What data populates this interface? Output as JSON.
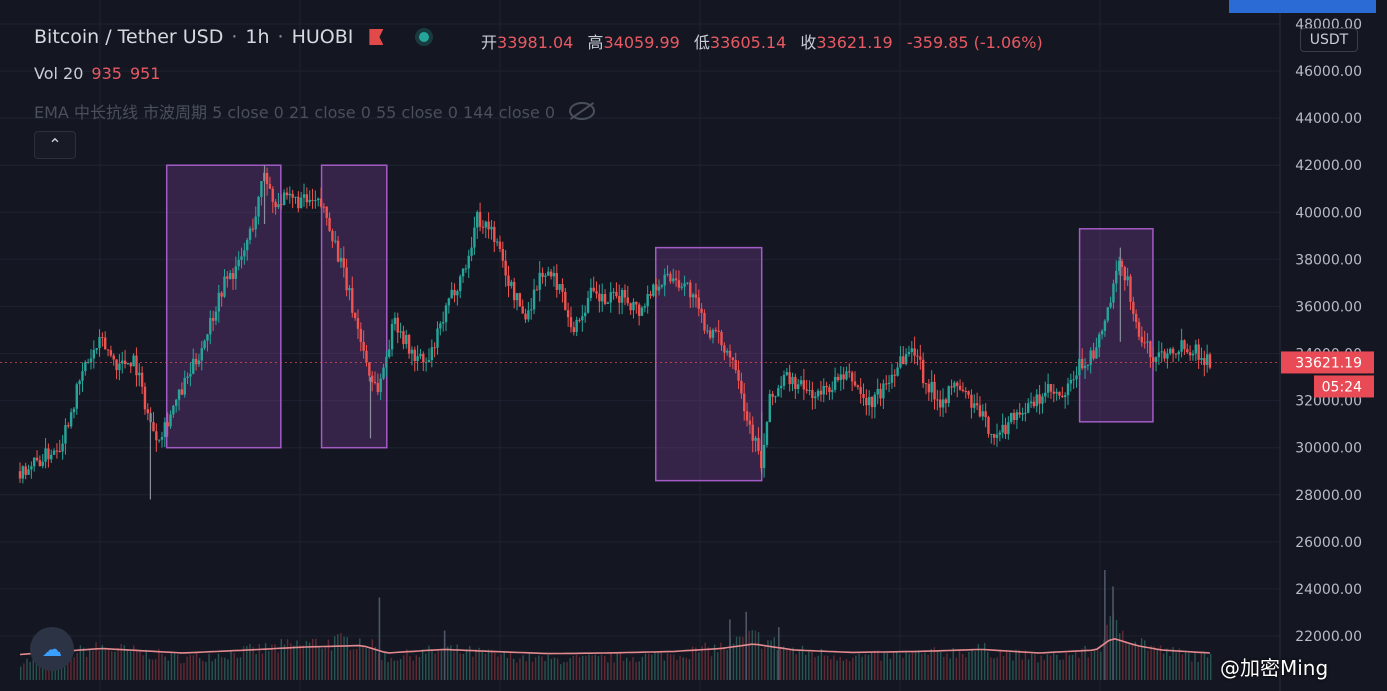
{
  "header": {
    "symbol": "Bitcoin / Tether USD",
    "interval": "1h",
    "exchange": "HUOBI",
    "open_label": "开",
    "open": "33981.04",
    "high_label": "高",
    "high": "34059.99",
    "low_label": "低",
    "low": "33605.14",
    "close_label": "收",
    "close": "33621.19",
    "change": "-359.85 (-1.06%)",
    "volume_label": "Vol 20",
    "volume_a": "935",
    "volume_b": "951",
    "ema_label": "EMA 中长抗线 市波周期 5 close 0 21 close 0 55 close 0 144 close 0",
    "collapse_icon": "chevron-up-icon",
    "currency": "USDT"
  },
  "colors": {
    "background": "#141722",
    "up": "#26a69a",
    "down": "#ef5350",
    "highlight_box": "#8e44ad",
    "price_label_bg": "#e84b55",
    "volume_line": "#e38a8f"
  },
  "price_axis": {
    "ticks": [
      "48000.00",
      "46000.00",
      "44000.00",
      "42000.00",
      "40000.00",
      "38000.00",
      "36000.00",
      "34000.00",
      "32000.00",
      "30000.00",
      "28000.00",
      "26000.00",
      "24000.00",
      "22000.00"
    ],
    "current_price": "33621.19",
    "countdown": "05:24"
  },
  "watermark": "@加密Ming",
  "chart_data": {
    "type": "candlestick",
    "ylim": [
      21300,
      48100
    ],
    "y_ticks": [
      48000,
      46000,
      44000,
      42000,
      40000,
      38000,
      36000,
      34000,
      32000,
      30000,
      28000,
      26000,
      24000,
      22000
    ],
    "current_price": 33621.19,
    "price_path": [
      [
        0,
        29000
      ],
      [
        3,
        29600
      ],
      [
        5,
        30200
      ],
      [
        8,
        33500
      ],
      [
        10,
        34500
      ],
      [
        12,
        33500
      ],
      [
        14,
        33800
      ],
      [
        16,
        31000
      ],
      [
        17,
        30500
      ],
      [
        19,
        31800
      ],
      [
        22,
        34000
      ],
      [
        25,
        37000
      ],
      [
        27,
        37800
      ],
      [
        29,
        40000
      ],
      [
        30,
        41800
      ],
      [
        31,
        40500
      ],
      [
        34,
        40500
      ],
      [
        37,
        40300
      ],
      [
        38,
        39500
      ],
      [
        40,
        37000
      ],
      [
        43,
        33000
      ],
      [
        44,
        32500
      ],
      [
        46,
        35500
      ],
      [
        48,
        34000
      ],
      [
        50,
        33500
      ],
      [
        53,
        36500
      ],
      [
        55,
        38000
      ],
      [
        56,
        39800
      ],
      [
        58,
        39200
      ],
      [
        60,
        37000
      ],
      [
        62,
        35500
      ],
      [
        64,
        37500
      ],
      [
        66,
        37000
      ],
      [
        68,
        35000
      ],
      [
        70,
        36500
      ],
      [
        72,
        36200
      ],
      [
        74,
        36500
      ],
      [
        76,
        35800
      ],
      [
        78,
        37000
      ],
      [
        80,
        37300
      ],
      [
        82,
        36800
      ],
      [
        84,
        35200
      ],
      [
        86,
        34500
      ],
      [
        88,
        33500
      ],
      [
        89,
        31500
      ],
      [
        90,
        30500
      ],
      [
        91,
        29200
      ],
      [
        92,
        32000
      ],
      [
        94,
        33000
      ],
      [
        96,
        32500
      ],
      [
        98,
        32200
      ],
      [
        100,
        32800
      ],
      [
        102,
        33000
      ],
      [
        104,
        31800
      ],
      [
        106,
        32500
      ],
      [
        108,
        33800
      ],
      [
        110,
        34200
      ],
      [
        111,
        32800
      ],
      [
        113,
        32000
      ],
      [
        115,
        32700
      ],
      [
        117,
        31800
      ],
      [
        119,
        30800
      ],
      [
        120,
        30400
      ],
      [
        122,
        31500
      ],
      [
        124,
        31700
      ],
      [
        126,
        32400
      ],
      [
        128,
        32000
      ],
      [
        130,
        33500
      ],
      [
        132,
        34000
      ],
      [
        134,
        36500
      ],
      [
        135,
        37900
      ],
      [
        136,
        37000
      ],
      [
        137,
        35000
      ],
      [
        139,
        33800
      ],
      [
        141,
        34200
      ],
      [
        143,
        34400
      ],
      [
        145,
        33900
      ],
      [
        146,
        33600
      ]
    ],
    "volume_profile": [
      [
        0,
        0.25
      ],
      [
        10,
        0.45
      ],
      [
        20,
        0.3
      ],
      [
        28,
        0.4
      ],
      [
        35,
        0.5
      ],
      [
        42,
        0.55
      ],
      [
        45,
        0.3
      ],
      [
        52,
        0.42
      ],
      [
        58,
        0.35
      ],
      [
        65,
        0.28
      ],
      [
        72,
        0.3
      ],
      [
        80,
        0.35
      ],
      [
        86,
        0.45
      ],
      [
        90,
        0.6
      ],
      [
        95,
        0.4
      ],
      [
        102,
        0.32
      ],
      [
        110,
        0.35
      ],
      [
        118,
        0.42
      ],
      [
        125,
        0.3
      ],
      [
        132,
        0.4
      ],
      [
        134,
        0.8
      ],
      [
        137,
        0.55
      ],
      [
        140,
        0.4
      ],
      [
        146,
        0.3
      ]
    ],
    "volume_spikes": [
      [
        44,
        0.75
      ],
      [
        52,
        0.45
      ],
      [
        87,
        0.55
      ],
      [
        89,
        0.62
      ],
      [
        93,
        0.48
      ],
      [
        133,
        1.0
      ],
      [
        134,
        0.85
      ]
    ],
    "highlight_ranges": [
      {
        "x_start": 18,
        "x_end": 32,
        "y_low": 30000,
        "y_high": 42000
      },
      {
        "x_start": 37,
        "x_end": 45,
        "y_low": 30000,
        "y_high": 42000
      },
      {
        "x_start": 78,
        "x_end": 91,
        "y_low": 28600,
        "y_high": 38500
      },
      {
        "x_start": 130,
        "x_end": 139,
        "y_low": 31100,
        "y_high": 39300
      }
    ]
  }
}
